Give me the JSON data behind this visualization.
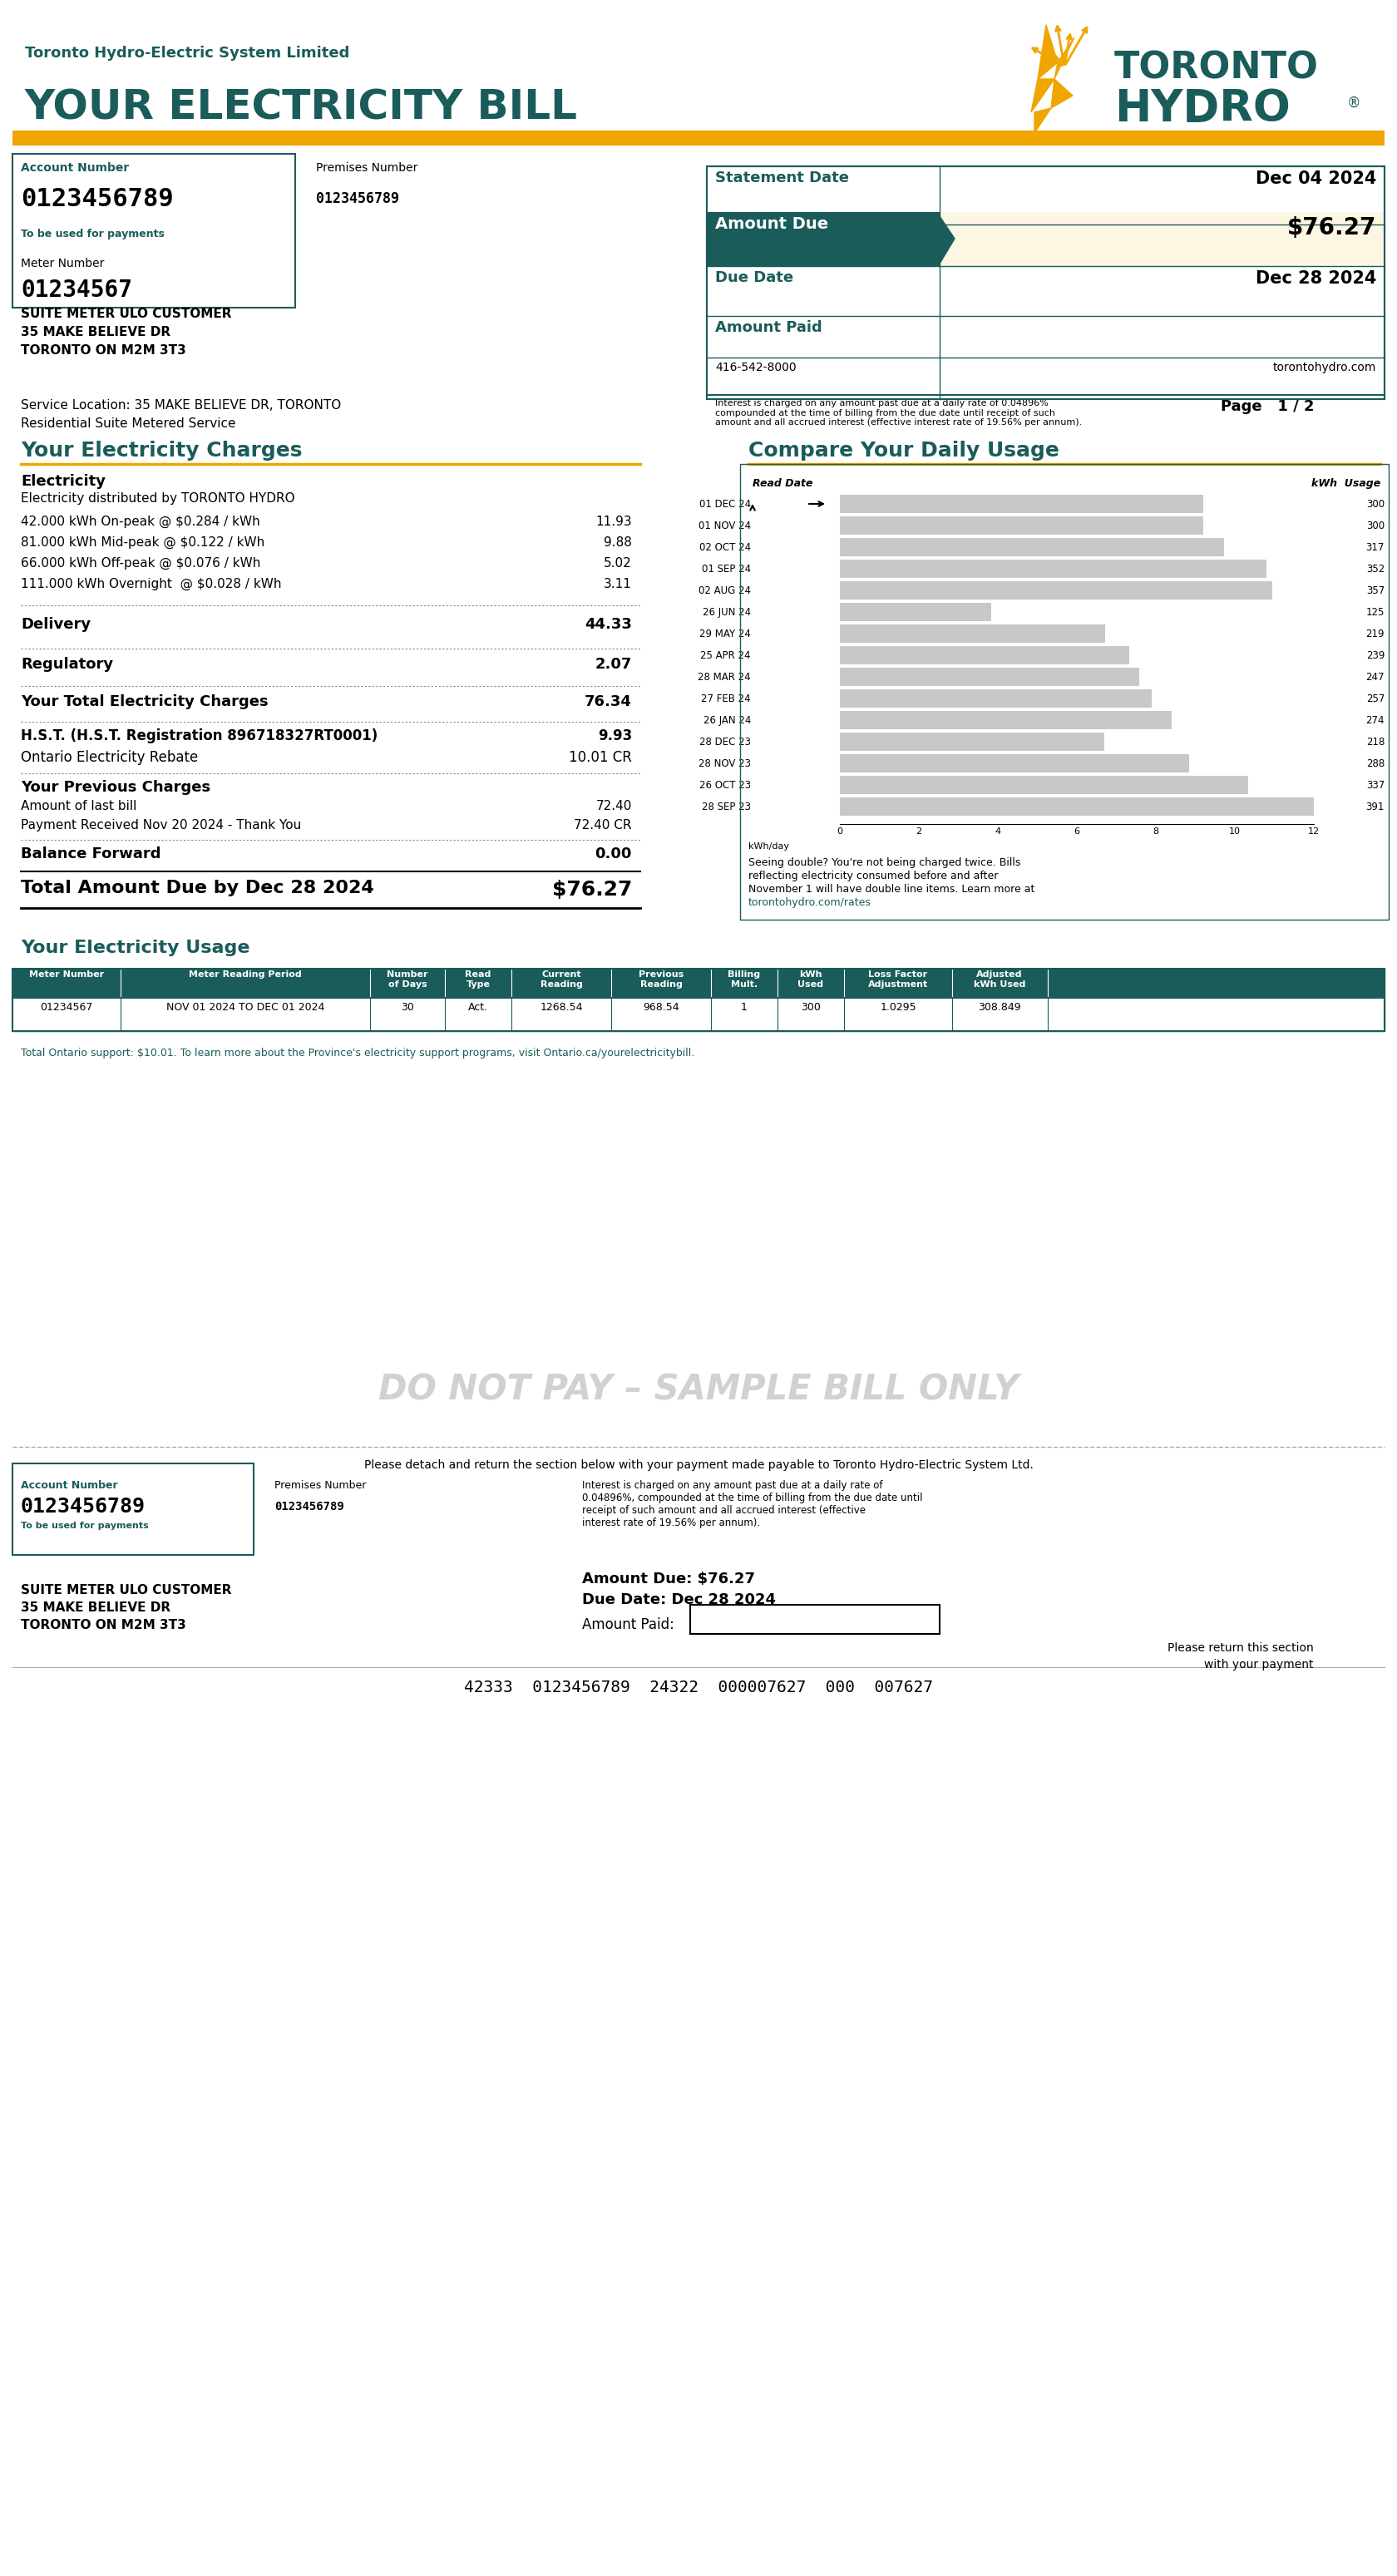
{
  "bg_color": "#ffffff",
  "teal": "#1a5c5a",
  "gold": "#f0a500",
  "light_gold_bg": "#fdf6e3",
  "light_teal_bg": "#e8f0ef",
  "header_bg": "#1a5c5a",
  "company_name": "Toronto Hydro-Electric System Limited",
  "bill_title": "YOUR ELECTRICITY BILL",
  "account_label": "Account Number",
  "account_number": "0123456789",
  "account_note": "To be used for payments",
  "premises_label": "Premises Number",
  "premises_number": "0123456789",
  "meter_label": "Meter Number",
  "meter_number": "01234567",
  "customer_name": "SUITE METER ULO CUSTOMER",
  "customer_address1": "35 MAKE BELIEVE DR",
  "customer_city": "TORONTO ON M2M 3T3",
  "statement_date_label": "Statement Date",
  "statement_date": "Dec 04 2024",
  "amount_due_label": "Amount Due",
  "amount_due": "$76.27",
  "due_date_label": "Due Date",
  "due_date": "Dec 28 2024",
  "amount_paid_label": "Amount Paid",
  "phone": "416-542-8000",
  "website": "torontohydro.com",
  "interest_note": "Interest is charged on any amount past due at a daily rate of 0.04896%\ncompounded at the time of billing from the due date until receipt of such\namount and all accrued interest (effective interest rate of 19.56% per annum).",
  "service_location": "Service Location: 35 MAKE BELIEVE DR, TORONTO",
  "service_type": "Residential Suite Metered Service",
  "page_info": "Page   1 / 2",
  "electricity_charges_title": "Your Electricity Charges",
  "compare_usage_title": "Compare Your Daily Usage",
  "electricity_label": "Electricity",
  "electricity_sub": "Electricity distributed by TORONTO HYDRO",
  "charge_lines": [
    {
      "desc": "42.000 kWh On-peak @ $0.284 / kWh",
      "amount": "11.93"
    },
    {
      "desc": "81.000 kWh Mid-peak @ $0.122 / kWh",
      "amount": "9.88"
    },
    {
      "desc": "66.000 kWh Off-peak @ $0.076 / kWh",
      "amount": "5.02"
    },
    {
      "desc": "111.000 kWh Overnight  @ $0.028 / kWh",
      "amount": "3.11"
    }
  ],
  "delivery_label": "Delivery",
  "delivery_amount": "44.33",
  "regulatory_label": "Regulatory",
  "regulatory_amount": "2.07",
  "total_elec_label": "Your Total Electricity Charges",
  "total_elec_amount": "76.34",
  "hst_label": "H.S.T. (H.S.T. Registration 896718327RT0001)",
  "hst_amount": "9.93",
  "oer_label": "Ontario Electricity Rebate",
  "oer_amount": "10.01 CR",
  "prev_charges_label": "Your Previous Charges",
  "last_bill_label": "Amount of last bill",
  "last_bill_amount": "72.40",
  "payment_label": "Payment Received Nov 20 2024 - Thank You",
  "payment_amount": "72.40 CR",
  "balance_label": "Balance Forward",
  "balance_amount": "0.00",
  "total_due_label": "Total Amount Due by Dec 28 2024",
  "total_due_amount": "$76.27",
  "usage_section_title": "Your Electricity Usage",
  "usage_table_headers": [
    "Meter Number",
    "Meter Reading Period",
    "Number\nof Days",
    "Read\nType",
    "Current\nReading",
    "Previous\nReading",
    "Billing\nMult.",
    "kWh\nUsed",
    "Loss Factor\nAdjustment",
    "Adjusted\nkWh Used"
  ],
  "usage_table_row": [
    "01234567",
    "NOV 01 2024 TO DEC 01 2024",
    "30",
    "Act.",
    "1268.54",
    "968.54",
    "1",
    "300",
    "1.0295",
    "308.849"
  ],
  "usage_note": "Total Ontario support: $10.01. To learn more about the Province's electricity support programs, visit Ontario.ca/yourelectricitybill.",
  "bar_chart_dates": [
    "01 DEC 24",
    "01 NOV 24",
    "02 OCT 24",
    "01 SEP 24",
    "02 AUG 24",
    "26 JUN 24",
    "29 MAY 24",
    "25 APR 24",
    "28 MAR 24",
    "27 FEB 24",
    "26 JAN 24",
    "28 DEC 23",
    "28 NOV 23",
    "26 OCT 23",
    "28 SEP 23"
  ],
  "bar_chart_values": [
    300,
    300,
    317,
    352,
    357,
    125,
    219,
    239,
    247,
    257,
    274,
    218,
    288,
    337,
    391
  ],
  "bar_color": "#c8c8c8",
  "bar_highlight_color": "#c8c8c8",
  "do_not_pay_text": "DO NOT PAY – SAMPLE BILL ONLY",
  "detach_text": "Please detach and return the section below with your payment made payable to Toronto Hydro-Electric System Ltd.",
  "bottom_account_label": "Account Number",
  "bottom_account_number": "0123456789",
  "bottom_account_note": "To be used for payments",
  "bottom_premises_label": "Premises Number",
  "bottom_premises_number": "0123456789",
  "bottom_customer": "SUITE METER ULO CUSTOMER\n35 MAKE BELIEVE DR\nTORONTO ON M2M 3T3",
  "bottom_interest_note": "Interest is charged on any amount past due at a daily rate of\n0.04896%, compounded at the time of billing from the due date until\nreceipt of such amount and all accrued interest (effective\ninterest rate of 19.56% per annum).",
  "bottom_amount_due": "Amount Due: $76.27",
  "bottom_due_date": "Due Date: Dec 28 2024",
  "bottom_amount_paid": "Amount Paid:",
  "bottom_return_note": "Please return this section\nwith your payment",
  "barcode_text": "42333  0123456789  24322  000007627  000  007627"
}
